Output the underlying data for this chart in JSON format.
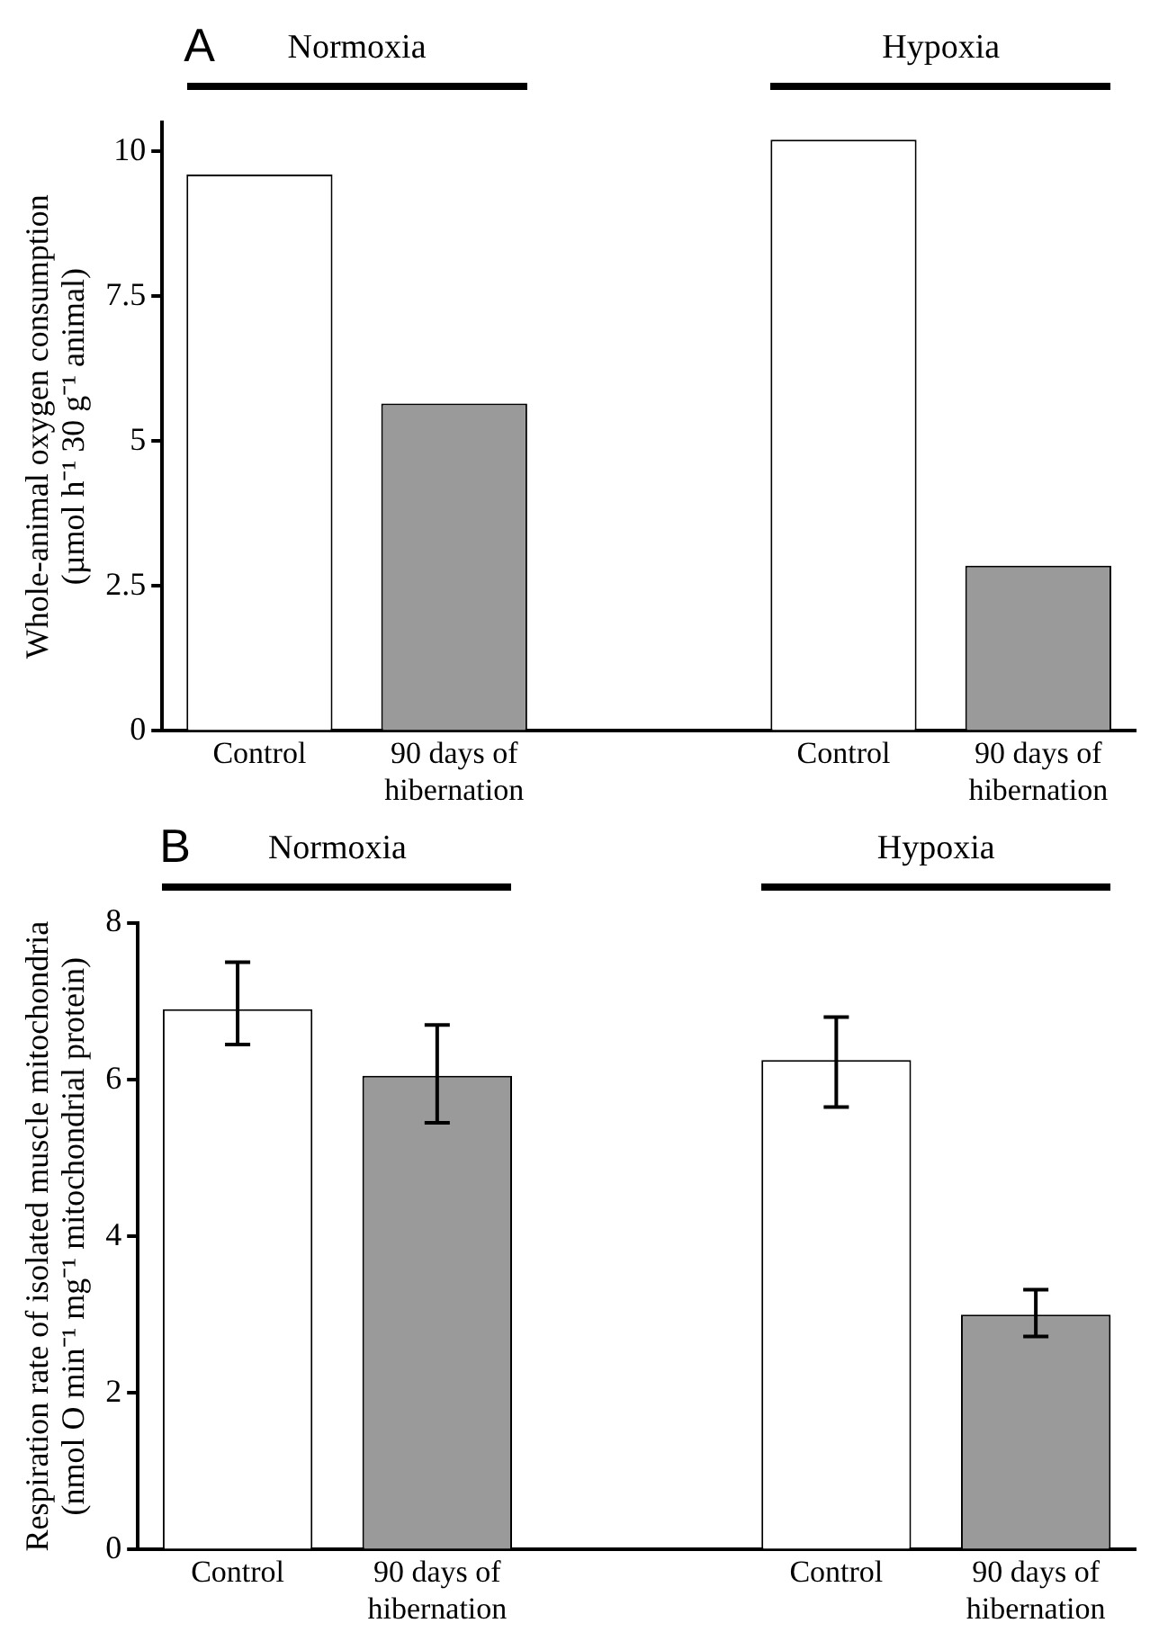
{
  "chart_data": [
    {
      "type": "bar",
      "title": "A",
      "ylabel": "Whole-animal oxygen consumption\n(µmol h⁻¹ 30 g⁻¹ animal)",
      "categories": [
        "Control",
        "90 days of hibernation",
        null,
        "Control",
        "90 days of hibernation"
      ],
      "values": [
        9.6,
        5.65,
        null,
        10.2,
        2.85
      ],
      "colors": [
        "#ffffff",
        "#9a9a9a",
        null,
        "#ffffff",
        "#9a9a9a"
      ],
      "ylim": [
        0,
        10.5
      ],
      "yticks": [
        0,
        2.5,
        5,
        7.5,
        10
      ],
      "grid": false,
      "legend": false,
      "annotations": [
        "Normoxia",
        "Hypoxia"
      ]
    },
    {
      "type": "bar",
      "title": "B",
      "ylabel": "Respiration rate of isolated muscle mitochondria\n(nmol O min⁻¹ mg⁻¹ mitochondrial protein)",
      "categories": [
        "Control",
        "90 days of hibernation",
        null,
        "Control",
        "90 days of hibernation"
      ],
      "values": [
        6.9,
        6.05,
        null,
        6.25,
        3.0
      ],
      "errors": [
        [
          6.45,
          7.5
        ],
        [
          5.45,
          6.7
        ],
        null,
        [
          5.65,
          6.8
        ],
        [
          2.72,
          3.32
        ]
      ],
      "colors": [
        "#ffffff",
        "#9a9a9a",
        null,
        "#ffffff",
        "#9a9a9a"
      ],
      "ylim": [
        0,
        8
      ],
      "yticks": [
        0,
        2,
        4,
        6,
        8
      ],
      "grid": false,
      "legend": false,
      "annotations": [
        "Normoxia",
        "Hypoxia"
      ]
    }
  ]
}
